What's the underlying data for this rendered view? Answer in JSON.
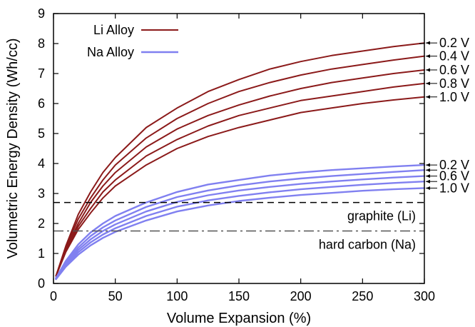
{
  "chart_data": {
    "type": "line",
    "xlabel": "Volume Expansion (%)",
    "ylabel": "Volumetric Energy Density (Wh/cc)",
    "xlim": [
      0,
      300
    ],
    "ylim": [
      0,
      9
    ],
    "xticks": [
      0,
      50,
      100,
      150,
      200,
      250,
      300
    ],
    "yticks": [
      0,
      1,
      2,
      3,
      4,
      5,
      6,
      7,
      8,
      9
    ],
    "grid": false,
    "legend": {
      "placement": "top-left",
      "entries": [
        {
          "label": "Li Alloy",
          "color": "#8b1a1a"
        },
        {
          "label": "Na Alloy",
          "color": "#8080f0"
        }
      ]
    },
    "colors": {
      "li": "#8b1a1a",
      "na": "#8080f0"
    },
    "x": [
      2,
      10,
      20,
      30,
      40,
      50,
      75,
      100,
      125,
      150,
      175,
      200,
      225,
      250,
      275,
      300
    ],
    "series": [
      {
        "group": "Li Alloy",
        "name": "0.2 V",
        "values": [
          0.25,
          1.25,
          2.3,
          3.05,
          3.7,
          4.2,
          5.2,
          5.85,
          6.4,
          6.8,
          7.15,
          7.4,
          7.6,
          7.75,
          7.9,
          8.02
        ]
      },
      {
        "group": "Li Alloy",
        "name": "0.4 V",
        "values": [
          0.25,
          1.2,
          2.15,
          2.85,
          3.45,
          3.95,
          4.85,
          5.5,
          6.0,
          6.4,
          6.7,
          6.95,
          7.15,
          7.3,
          7.45,
          7.58
        ]
      },
      {
        "group": "Li Alloy",
        "name": "0.6 V",
        "values": [
          0.25,
          1.15,
          2.0,
          2.7,
          3.25,
          3.7,
          4.55,
          5.15,
          5.6,
          5.95,
          6.25,
          6.5,
          6.7,
          6.85,
          7.0,
          7.12
        ]
      },
      {
        "group": "Li Alloy",
        "name": "0.8 V",
        "values": [
          0.25,
          1.1,
          1.9,
          2.5,
          3.05,
          3.45,
          4.25,
          4.8,
          5.25,
          5.6,
          5.85,
          6.1,
          6.25,
          6.4,
          6.55,
          6.67
        ]
      },
      {
        "group": "Li Alloy",
        "name": "1.0 V",
        "values": [
          0.25,
          1.05,
          1.8,
          2.35,
          2.85,
          3.25,
          3.95,
          4.5,
          4.9,
          5.2,
          5.45,
          5.7,
          5.85,
          6.0,
          6.12,
          6.22
        ]
      },
      {
        "group": "Na Alloy",
        "name": "0.2 V",
        "values": [
          0.18,
          0.75,
          1.3,
          1.7,
          2.0,
          2.25,
          2.7,
          3.05,
          3.3,
          3.45,
          3.6,
          3.7,
          3.78,
          3.84,
          3.9,
          3.95
        ]
      },
      {
        "group": "Na Alloy",
        "name": "",
        "values": [
          0.17,
          0.7,
          1.2,
          1.58,
          1.87,
          2.1,
          2.55,
          2.88,
          3.1,
          3.27,
          3.4,
          3.5,
          3.58,
          3.65,
          3.72,
          3.78
        ]
      },
      {
        "group": "Na Alloy",
        "name": "0.6 V",
        "values": [
          0.16,
          0.65,
          1.12,
          1.47,
          1.75,
          1.97,
          2.4,
          2.72,
          2.94,
          3.1,
          3.22,
          3.32,
          3.4,
          3.47,
          3.53,
          3.58
        ]
      },
      {
        "group": "Na Alloy",
        "name": "",
        "values": [
          0.15,
          0.6,
          1.04,
          1.37,
          1.63,
          1.84,
          2.25,
          2.56,
          2.77,
          2.92,
          3.04,
          3.14,
          3.22,
          3.29,
          3.35,
          3.4
        ]
      },
      {
        "group": "Na Alloy",
        "name": "1.0 V",
        "values": [
          0.14,
          0.56,
          0.96,
          1.27,
          1.52,
          1.72,
          2.1,
          2.4,
          2.6,
          2.75,
          2.86,
          2.95,
          3.02,
          3.09,
          3.14,
          3.18
        ]
      }
    ],
    "reference_lines": [
      {
        "label": "graphite (Li)",
        "y": 2.7,
        "style": "dashed"
      },
      {
        "label": "hard carbon (Na)",
        "y": 1.75,
        "style": "dash-dot"
      }
    ]
  }
}
